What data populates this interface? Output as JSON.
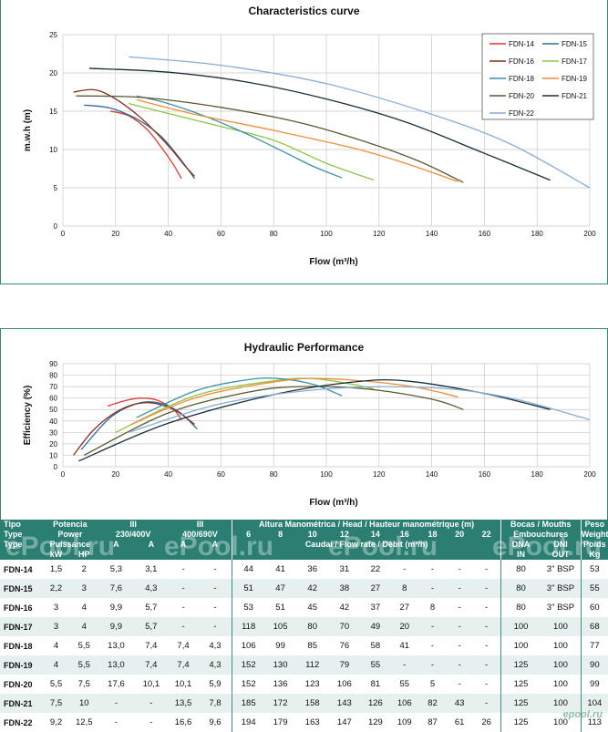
{
  "chart_data": [
    {
      "type": "line",
      "title": "Characteristics curve",
      "xlabel": "Flow (m³/h)",
      "ylabel": "m.w.h (m)",
      "xlim": [
        0,
        200
      ],
      "ylim": [
        0,
        25
      ],
      "xticks": [
        "0",
        "20",
        "40",
        "60",
        "80",
        "100",
        "120",
        "140",
        "160",
        "180",
        "200"
      ],
      "yticks": [
        "0",
        "5",
        "10",
        "15",
        "20",
        "25"
      ],
      "grid": true,
      "legend_position": "top-right",
      "series": [
        {
          "name": "FDN-14",
          "color": "#e0362c",
          "points": [
            [
              18,
              15
            ],
            [
              25,
              14.4
            ],
            [
              32,
              12.6
            ],
            [
              38,
              10
            ],
            [
              42,
              8
            ],
            [
              45,
              6.2
            ]
          ]
        },
        {
          "name": "FDN-15",
          "color": "#2e6d9e",
          "points": [
            [
              8,
              15.8
            ],
            [
              18,
              15.4
            ],
            [
              28,
              14
            ],
            [
              37,
              11.8
            ],
            [
              44,
              9
            ],
            [
              50,
              6.2
            ]
          ]
        },
        {
          "name": "FDN-16",
          "color": "#8b2f20",
          "points": [
            [
              4,
              17.5
            ],
            [
              12,
              17.8
            ],
            [
              20,
              16.6
            ],
            [
              30,
              14
            ],
            [
              40,
              10.5
            ],
            [
              46,
              8
            ],
            [
              50,
              6.5
            ]
          ]
        },
        {
          "name": "FDN-17",
          "color": "#8dc63f",
          "points": [
            [
              25,
              16
            ],
            [
              40,
              14.7
            ],
            [
              60,
              13
            ],
            [
              80,
              11.2
            ],
            [
              100,
              8.2
            ],
            [
              118,
              6
            ]
          ]
        },
        {
          "name": "FDN-18",
          "color": "#3a8fa8",
          "points": [
            [
              28,
              17
            ],
            [
              40,
              16
            ],
            [
              55,
              14.2
            ],
            [
              70,
              12
            ],
            [
              85,
              9.5
            ],
            [
              95,
              7.8
            ],
            [
              106,
              6.3
            ]
          ]
        },
        {
          "name": "FDN-19",
          "color": "#f28c38",
          "points": [
            [
              28,
              16.5
            ],
            [
              50,
              14.6
            ],
            [
              80,
              12.5
            ],
            [
              110,
              10.2
            ],
            [
              130,
              8.2
            ],
            [
              150,
              5.8
            ]
          ]
        },
        {
          "name": "FDN-20",
          "color": "#5a5a2e",
          "points": [
            [
              5,
              17
            ],
            [
              30,
              16.8
            ],
            [
              60,
              15.5
            ],
            [
              90,
              13.5
            ],
            [
              115,
              11
            ],
            [
              135,
              8.5
            ],
            [
              152,
              5.7
            ]
          ]
        },
        {
          "name": "FDN-21",
          "color": "#1a2e3a",
          "points": [
            [
              10,
              20.6
            ],
            [
              40,
              20.1
            ],
            [
              70,
              18.8
            ],
            [
              100,
              16.6
            ],
            [
              130,
              13.6
            ],
            [
              160,
              9.5
            ],
            [
              185,
              6
            ]
          ]
        },
        {
          "name": "FDN-22",
          "color": "#86aed6",
          "points": [
            [
              25,
              22.1
            ],
            [
              60,
              21
            ],
            [
              100,
              18.6
            ],
            [
              140,
              14.6
            ],
            [
              170,
              10.7
            ],
            [
              200,
              5
            ]
          ]
        }
      ]
    },
    {
      "type": "line",
      "title": "Hydraulic Performance",
      "xlabel": "Flow (m³/h)",
      "ylabel": "Efficiency (%)",
      "xlim": [
        0,
        200
      ],
      "ylim": [
        0,
        90
      ],
      "xticks": [
        "0",
        "20",
        "40",
        "60",
        "80",
        "100",
        "120",
        "140",
        "160",
        "180",
        "200"
      ],
      "yticks": [
        "0",
        "10",
        "20",
        "30",
        "40",
        "50",
        "60",
        "70",
        "80",
        "90"
      ],
      "grid": true,
      "series": [
        {
          "name": "FDN-14",
          "color": "#e0362c",
          "points": [
            [
              17,
              53
            ],
            [
              24,
              58
            ],
            [
              30,
              60
            ],
            [
              36,
              58
            ],
            [
              42,
              50
            ],
            [
              45,
              41
            ]
          ]
        },
        {
          "name": "FDN-15",
          "color": "#2e6d9e",
          "points": [
            [
              7,
              15
            ],
            [
              18,
              43
            ],
            [
              28,
              55
            ],
            [
              36,
              56
            ],
            [
              44,
              48
            ],
            [
              51,
              33
            ]
          ]
        },
        {
          "name": "FDN-16",
          "color": "#8b2f20",
          "points": [
            [
              4,
              10
            ],
            [
              12,
              33
            ],
            [
              22,
              50
            ],
            [
              32,
              56
            ],
            [
              42,
              50
            ],
            [
              50,
              37
            ]
          ]
        },
        {
          "name": "FDN-17",
          "color": "#8dc63f",
          "points": [
            [
              20,
              30
            ],
            [
              50,
              62
            ],
            [
              80,
              75
            ],
            [
              95,
              77
            ],
            [
              110,
              72
            ],
            [
              118,
              68
            ]
          ]
        },
        {
          "name": "FDN-18",
          "color": "#3a8fa8",
          "points": [
            [
              28,
              43
            ],
            [
              50,
              66
            ],
            [
              70,
              76
            ],
            [
              82,
              77
            ],
            [
              95,
              72
            ],
            [
              106,
              62
            ]
          ]
        },
        {
          "name": "FDN-19",
          "color": "#f28c38",
          "points": [
            [
              26,
              37
            ],
            [
              50,
              60
            ],
            [
              80,
              74
            ],
            [
              100,
              77
            ],
            [
              130,
              71
            ],
            [
              150,
              61
            ]
          ]
        },
        {
          "name": "FDN-20",
          "color": "#5a5a2e",
          "points": [
            [
              8,
              10
            ],
            [
              40,
              47
            ],
            [
              70,
              65
            ],
            [
              90,
              70
            ],
            [
              115,
              68
            ],
            [
              140,
              59
            ],
            [
              152,
              50
            ]
          ]
        },
        {
          "name": "FDN-21",
          "color": "#1a2e3a",
          "points": [
            [
              6,
              5
            ],
            [
              40,
              38
            ],
            [
              80,
              63
            ],
            [
              110,
              74
            ],
            [
              130,
              75
            ],
            [
              160,
              64
            ],
            [
              185,
              50
            ]
          ]
        },
        {
          "name": "FDN-22",
          "color": "#86aed6",
          "points": [
            [
              25,
              30
            ],
            [
              60,
              55
            ],
            [
              100,
              68
            ],
            [
              140,
              69
            ],
            [
              170,
              60
            ],
            [
              200,
              41
            ]
          ]
        }
      ]
    }
  ],
  "table": {
    "header_top": {
      "tipo": "Tipo",
      "potencia": "Potencia",
      "three_phase_1": "III",
      "three_phase_2": "III",
      "altura": "Altura Manométrica / Head / Hauteur manométrique (m)",
      "bocas": "Bocas / Mouths",
      "peso": "Peso"
    },
    "header_mid": {
      "type": "Type",
      "power": "Power",
      "volt1": "230/400V",
      "volt2": "400/690V",
      "emb": "Embouchures",
      "weight": "Weight"
    },
    "header_low": {
      "type_fr": "Type",
      "puissance": "Puissance",
      "dna": "DNA",
      "dni": "DNI",
      "poids": "Poids"
    },
    "header_units": {
      "kw": "kW",
      "hp": "HP",
      "a1": "A",
      "a2": "A",
      "a3": "A",
      "a4": "A",
      "caudal": "Caudal / Flow rate / Débit (m³/h)",
      "in": "IN",
      "out": "OUT",
      "kg": "Kg"
    },
    "flows": [
      "6",
      "8",
      "10",
      "12",
      "14",
      "16",
      "18",
      "20",
      "22"
    ],
    "rows": [
      [
        "FDN-14",
        "1,5",
        "2",
        "5,3",
        "3,1",
        "-",
        "-",
        "44",
        "41",
        "36",
        "31",
        "22",
        "-",
        "-",
        "-",
        "-",
        "80",
        "3\" BSP",
        "53"
      ],
      [
        "FDN-15",
        "2,2",
        "3",
        "7,6",
        "4,3",
        "-",
        "-",
        "51",
        "47",
        "42",
        "38",
        "27",
        "8",
        "-",
        "-",
        "-",
        "80",
        "3\" BSP",
        "55"
      ],
      [
        "FDN-16",
        "3",
        "4",
        "9,9",
        "5,7",
        "-",
        "-",
        "53",
        "51",
        "45",
        "42",
        "37",
        "27",
        "8",
        "-",
        "-",
        "80",
        "3\" BSP",
        "60"
      ],
      [
        "FDN-17",
        "3",
        "4",
        "9,9",
        "5,7",
        "-",
        "-",
        "118",
        "105",
        "80",
        "70",
        "49",
        "20",
        "-",
        "-",
        "-",
        "100",
        "100",
        "68"
      ],
      [
        "FDN-18",
        "4",
        "5,5",
        "13,0",
        "7,4",
        "7,4",
        "4,3",
        "106",
        "99",
        "85",
        "76",
        "58",
        "41",
        "-",
        "-",
        "-",
        "100",
        "100",
        "77"
      ],
      [
        "FDN-19",
        "4",
        "5,5",
        "13,0",
        "7,4",
        "7,4",
        "4,3",
        "152",
        "130",
        "112",
        "79",
        "55",
        "-",
        "-",
        "-",
        "-",
        "125",
        "100",
        "90"
      ],
      [
        "FDN-20",
        "5,5",
        "7,5",
        "17,6",
        "10,1",
        "10,1",
        "5,9",
        "152",
        "136",
        "123",
        "106",
        "81",
        "55",
        "5",
        "-",
        "-",
        "125",
        "100",
        "99"
      ],
      [
        "FDN-21",
        "7,5",
        "10",
        "-",
        "-",
        "13,5",
        "7,8",
        "185",
        "172",
        "158",
        "143",
        "126",
        "106",
        "82",
        "43",
        "-",
        "125",
        "100",
        "104"
      ],
      [
        "FDN-22",
        "9,2",
        "12,5",
        "-",
        "-",
        "16,6",
        "9,6",
        "194",
        "179",
        "163",
        "147",
        "129",
        "109",
        "87",
        "61",
        "26",
        "125",
        "100",
        "113"
      ]
    ]
  },
  "watermarks": [
    "ePool.ru",
    "ePool.ru",
    "ePool.ru",
    "ePool.ru"
  ],
  "corner_mark": "epool.ru"
}
